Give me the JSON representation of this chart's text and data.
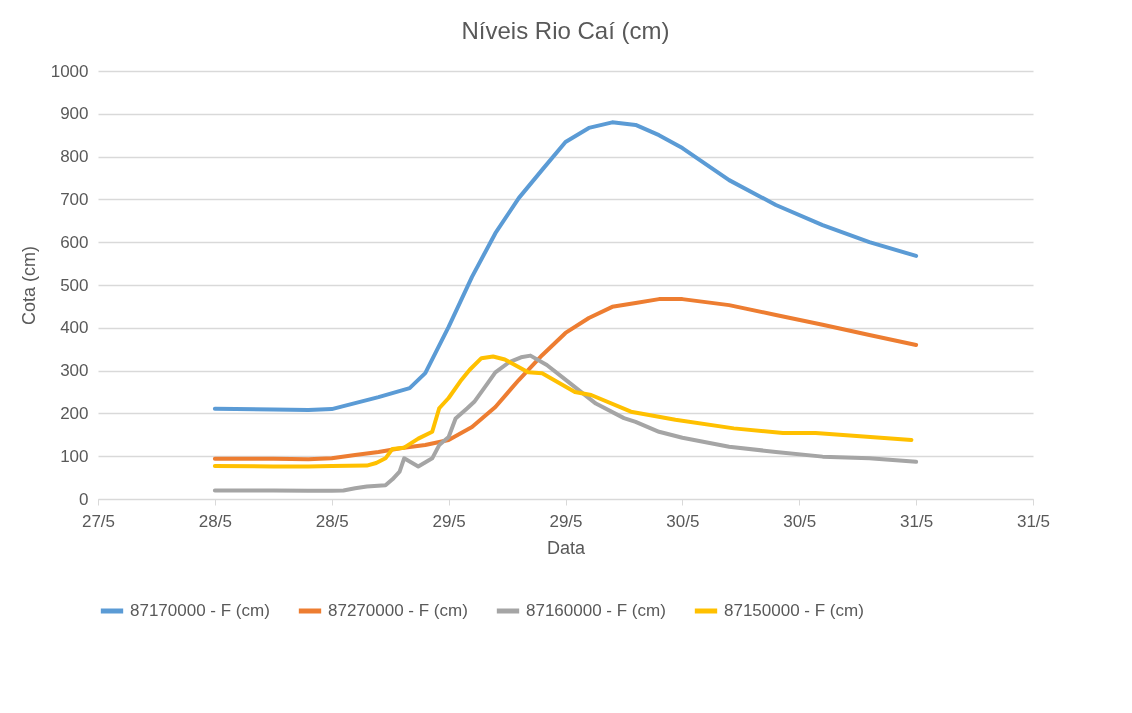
{
  "chart_data": {
    "type": "line",
    "title": "Níveis Rio Caí (cm)",
    "xlabel": "Data",
    "ylabel": "Cota (cm)",
    "xlim": [
      "--05-27T12:00",
      "--05-31T12:00"
    ],
    "xticks": [
      {
        "value": "--05-27T12:00",
        "label": "27/5"
      },
      {
        "value": "--05-28T00:00",
        "label": "28/5"
      },
      {
        "value": "--05-28T12:00",
        "label": "28/5"
      },
      {
        "value": "--05-29T00:00",
        "label": "29/5"
      },
      {
        "value": "--05-29T12:00",
        "label": "29/5"
      },
      {
        "value": "--05-30T00:00",
        "label": "30/5"
      },
      {
        "value": "--05-30T12:00",
        "label": "30/5"
      },
      {
        "value": "--05-31T00:00",
        "label": "31/5"
      },
      {
        "value": "--05-31T12:00",
        "label": "31/5"
      }
    ],
    "ylim": [
      0,
      1000
    ],
    "yticks": [
      0,
      100,
      200,
      300,
      400,
      500,
      600,
      700,
      800,
      900,
      {
        "value": 1000,
        "label": "1000"
      }
    ],
    "grid": "y",
    "legend": "bottom",
    "marker": "none",
    "line_style": "solid",
    "series": [
      {
        "name": "87170000 - F (cm)",
        "color": "#5b9bd5",
        "x": [
          "--05-28T00:00",
          "--05-28T06:00",
          "--05-28T09:36",
          "--05-28T12:00",
          "--05-28T14:24",
          "--05-28T16:48",
          "--05-28T20:00",
          "--05-28T21:36",
          "--05-29T00:00",
          "--05-29T02:24",
          "--05-29T04:48",
          "--05-29T07:12",
          "--05-29T09:36",
          "--05-29T12:00",
          "--05-29T14:24",
          "--05-29T16:48",
          "--05-29T19:12",
          "--05-29T21:36",
          "--05-30T00:00",
          "--05-30T04:48",
          "--05-30T09:36",
          "--05-30T14:24",
          "--05-30T19:12",
          "--05-31T00:00"
        ],
        "values": [
          211,
          209,
          208,
          210,
          224,
          238,
          259,
          294,
          402,
          519,
          621,
          703,
          769,
          834,
          867,
          880,
          874,
          850,
          820,
          745,
          687,
          640,
          600,
          568
        ]
      },
      {
        "name": "87270000 - F (cm)",
        "color": "#ed7d31",
        "x": [
          "--05-28T00:00",
          "--05-28T06:00",
          "--05-28T09:36",
          "--05-28T12:00",
          "--05-28T14:24",
          "--05-28T16:48",
          "--05-28T19:12",
          "--05-28T21:36",
          "--05-29T00:00",
          "--05-29T02:24",
          "--05-29T04:48",
          "--05-29T07:12",
          "--05-29T09:36",
          "--05-29T12:00",
          "--05-29T14:24",
          "--05-29T16:48",
          "--05-29T19:12",
          "--05-29T21:36",
          "--05-30T00:00",
          "--05-30T04:48",
          "--05-30T09:36",
          "--05-30T14:24",
          "--05-30T19:12",
          "--05-31T00:00"
        ],
        "values": [
          94,
          94,
          93,
          95,
          103,
          110,
          119,
          126,
          138,
          168,
          215,
          278,
          336,
          388,
          423,
          449,
          458,
          467,
          467,
          453,
          430,
          407,
          383,
          360
        ]
      },
      {
        "name": "87160000 - F (cm)",
        "color": "#a5a5a5",
        "x": [
          "--05-28T00:00",
          "--05-28T06:00",
          "--05-28T09:36",
          "--05-28T12:00",
          "--05-28T13:12",
          "--05-28T14:24",
          "--05-28T15:36",
          "--05-28T17:31",
          "--05-28T18:14",
          "--05-28T18:58",
          "--05-28T19:26",
          "--05-28T20:53",
          "--05-28T22:19",
          "--05-28T23:02",
          "--05-29T00:00",
          "--05-29T00:43",
          "--05-29T01:55",
          "--05-29T02:38",
          "--05-29T03:50",
          "--05-29T04:48",
          "--05-29T06:14",
          "--05-29T07:26",
          "--05-29T08:24",
          "--05-29T10:05",
          "--05-29T12:29",
          "--05-29T15:07",
          "--05-29T18:00",
          "--05-29T19:12",
          "--05-29T21:36",
          "--05-30T00:00",
          "--05-30T04:48",
          "--05-30T09:36",
          "--05-30T14:24",
          "--05-30T19:12",
          "--05-31T00:00"
        ],
        "values": [
          20,
          20,
          19,
          19,
          20,
          25,
          29,
          32,
          46,
          64,
          95,
          76,
          95,
          126,
          145,
          188,
          212,
          227,
          265,
          296,
          320,
          331,
          335,
          313,
          270,
          223,
          189,
          180,
          157,
          143,
          122,
          110,
          99,
          95,
          87
        ]
      },
      {
        "name": "87150000 - F (cm)",
        "color": "#ffc000",
        "x": [
          "--05-28T00:00",
          "--05-28T06:00",
          "--05-28T09:36",
          "--05-28T12:00",
          "--05-28T15:36",
          "--05-28T16:34",
          "--05-28T17:31",
          "--05-28T18:14",
          "--05-28T19:26",
          "--05-28T20:53",
          "--05-28T22:19",
          "--05-28T23:02",
          "--05-29T00:00",
          "--05-29T01:12",
          "--05-29T02:10",
          "--05-29T03:22",
          "--05-29T04:34",
          "--05-29T05:46",
          "--05-29T08:10",
          "--05-29T09:36",
          "--05-29T12:58",
          "--05-29T14:38",
          "--05-29T18:43",
          "--05-29T23:17",
          "--05-30T05:17",
          "--05-30T10:19",
          "--05-30T13:41",
          "--05-30T23:31"
        ],
        "values": [
          77,
          76,
          76,
          77,
          78,
          84,
          95,
          117,
          120,
          141,
          157,
          212,
          236,
          275,
          302,
          329,
          333,
          326,
          296,
          294,
          250,
          243,
          204,
          185,
          165,
          154,
          154,
          138
        ]
      }
    ]
  }
}
